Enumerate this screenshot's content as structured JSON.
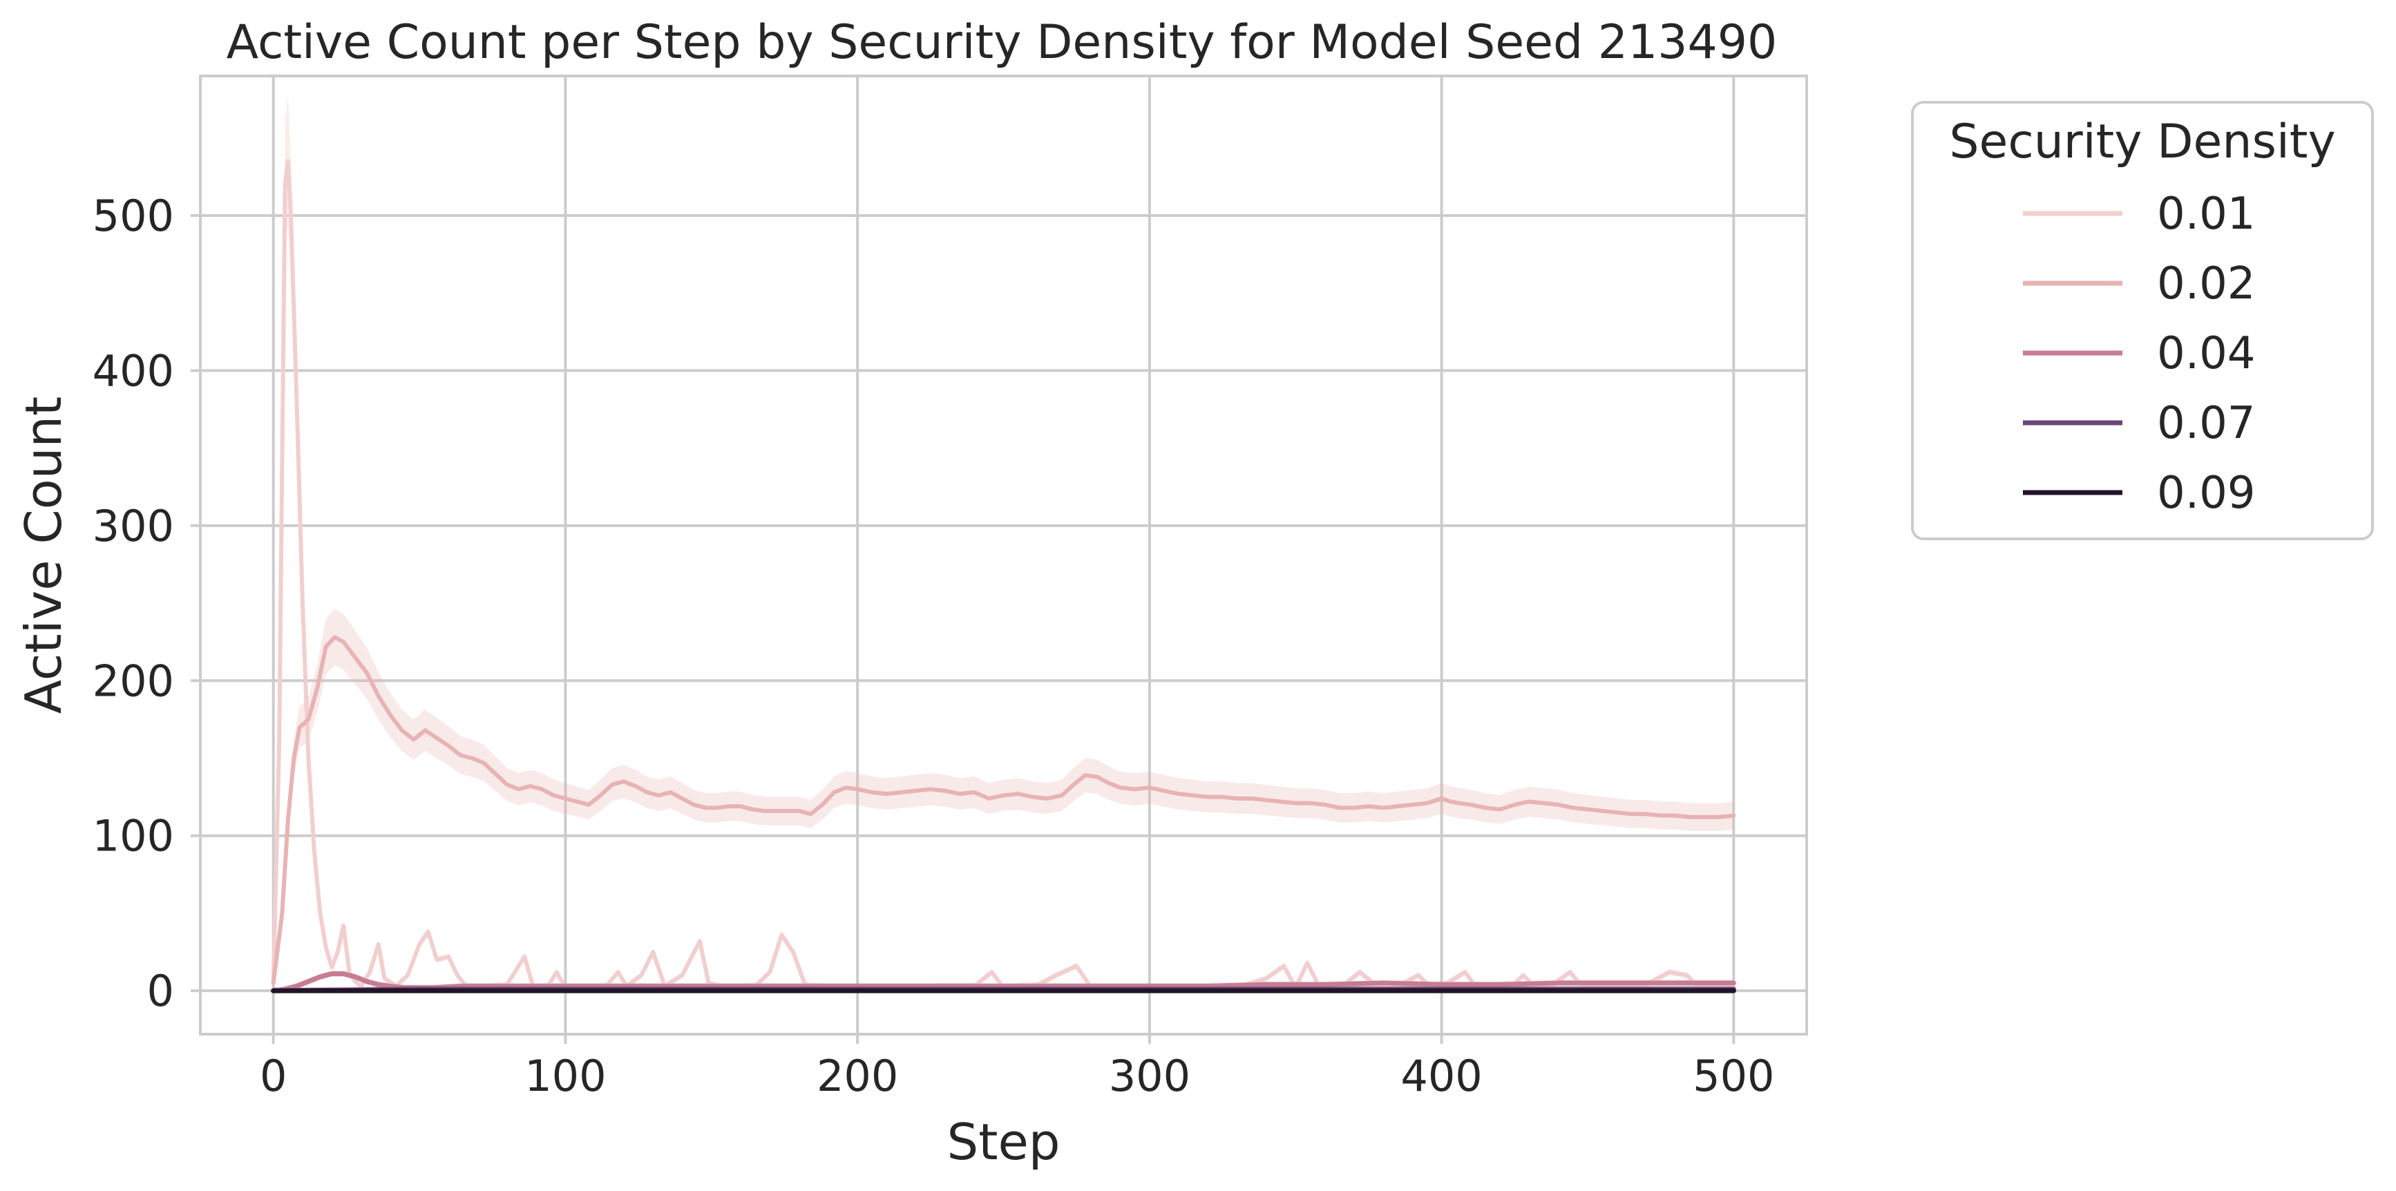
{
  "chart_data": {
    "type": "line",
    "title": "Active Count per Step by Security Density for Model Seed 213490",
    "xlabel": "Step",
    "ylabel": "Active Count",
    "xlim": [
      -25,
      525
    ],
    "ylim": [
      -28,
      590
    ],
    "xticks": [
      0,
      100,
      200,
      300,
      400,
      500
    ],
    "yticks": [
      0,
      100,
      200,
      300,
      400,
      500
    ],
    "grid": true,
    "legend": {
      "title": "Security Density",
      "placement": "outside-top-right"
    },
    "series": [
      {
        "name": "0.01",
        "color": "#f1cfce",
        "points": [
          [
            0,
            5
          ],
          [
            2,
            160
          ],
          [
            4,
            520
          ],
          [
            5,
            535
          ],
          [
            6,
            500
          ],
          [
            8,
            380
          ],
          [
            10,
            250
          ],
          [
            12,
            150
          ],
          [
            14,
            90
          ],
          [
            16,
            50
          ],
          [
            18,
            28
          ],
          [
            20,
            15
          ],
          [
            22,
            25
          ],
          [
            24,
            42
          ],
          [
            26,
            12
          ],
          [
            28,
            6
          ],
          [
            30,
            3
          ],
          [
            33,
            12
          ],
          [
            36,
            30
          ],
          [
            38,
            8
          ],
          [
            42,
            3
          ],
          [
            46,
            10
          ],
          [
            50,
            30
          ],
          [
            53,
            38
          ],
          [
            56,
            20
          ],
          [
            60,
            22
          ],
          [
            63,
            10
          ],
          [
            66,
            3
          ],
          [
            72,
            2
          ],
          [
            80,
            4
          ],
          [
            86,
            22
          ],
          [
            89,
            2
          ],
          [
            94,
            3
          ],
          [
            97,
            12
          ],
          [
            100,
            2
          ],
          [
            108,
            2
          ],
          [
            114,
            3
          ],
          [
            118,
            12
          ],
          [
            121,
            3
          ],
          [
            126,
            10
          ],
          [
            130,
            25
          ],
          [
            134,
            3
          ],
          [
            140,
            10
          ],
          [
            146,
            32
          ],
          [
            149,
            5
          ],
          [
            155,
            2
          ],
          [
            165,
            3
          ],
          [
            170,
            12
          ],
          [
            174,
            36
          ],
          [
            178,
            25
          ],
          [
            182,
            4
          ],
          [
            190,
            2
          ],
          [
            200,
            2
          ],
          [
            210,
            2
          ],
          [
            220,
            2
          ],
          [
            230,
            3
          ],
          [
            240,
            3
          ],
          [
            246,
            12
          ],
          [
            250,
            2
          ],
          [
            256,
            3
          ],
          [
            262,
            4
          ],
          [
            268,
            10
          ],
          [
            275,
            16
          ],
          [
            280,
            2
          ],
          [
            290,
            2
          ],
          [
            300,
            2
          ],
          [
            310,
            2
          ],
          [
            320,
            2
          ],
          [
            330,
            2
          ],
          [
            340,
            8
          ],
          [
            346,
            16
          ],
          [
            350,
            2
          ],
          [
            354,
            18
          ],
          [
            358,
            3
          ],
          [
            366,
            3
          ],
          [
            372,
            12
          ],
          [
            378,
            3
          ],
          [
            386,
            4
          ],
          [
            392,
            10
          ],
          [
            396,
            3
          ],
          [
            402,
            5
          ],
          [
            408,
            12
          ],
          [
            412,
            2
          ],
          [
            418,
            3
          ],
          [
            424,
            3
          ],
          [
            428,
            10
          ],
          [
            432,
            2
          ],
          [
            438,
            4
          ],
          [
            444,
            12
          ],
          [
            448,
            3
          ],
          [
            456,
            2
          ],
          [
            462,
            3
          ],
          [
            470,
            4
          ],
          [
            478,
            12
          ],
          [
            484,
            10
          ],
          [
            488,
            2
          ],
          [
            494,
            2
          ],
          [
            500,
            2
          ]
        ]
      },
      {
        "name": "0.02",
        "color": "#e8b3b4",
        "points": [
          [
            0,
            5
          ],
          [
            3,
            50
          ],
          [
            5,
            110
          ],
          [
            7,
            150
          ],
          [
            9,
            170
          ],
          [
            12,
            175
          ],
          [
            15,
            195
          ],
          [
            18,
            222
          ],
          [
            21,
            228
          ],
          [
            24,
            225
          ],
          [
            28,
            215
          ],
          [
            32,
            205
          ],
          [
            36,
            190
          ],
          [
            40,
            178
          ],
          [
            44,
            168
          ],
          [
            48,
            162
          ],
          [
            52,
            168
          ],
          [
            56,
            163
          ],
          [
            60,
            158
          ],
          [
            64,
            152
          ],
          [
            68,
            150
          ],
          [
            72,
            147
          ],
          [
            76,
            140
          ],
          [
            80,
            133
          ],
          [
            84,
            130
          ],
          [
            88,
            132
          ],
          [
            92,
            130
          ],
          [
            96,
            126
          ],
          [
            100,
            124
          ],
          [
            104,
            122
          ],
          [
            108,
            120
          ],
          [
            112,
            126
          ],
          [
            116,
            133
          ],
          [
            120,
            135
          ],
          [
            124,
            132
          ],
          [
            128,
            128
          ],
          [
            132,
            126
          ],
          [
            136,
            128
          ],
          [
            140,
            124
          ],
          [
            144,
            120
          ],
          [
            148,
            118
          ],
          [
            152,
            118
          ],
          [
            156,
            119
          ],
          [
            160,
            119
          ],
          [
            164,
            117
          ],
          [
            168,
            116
          ],
          [
            172,
            116
          ],
          [
            176,
            116
          ],
          [
            180,
            116
          ],
          [
            184,
            114
          ],
          [
            188,
            120
          ],
          [
            192,
            128
          ],
          [
            196,
            131
          ],
          [
            200,
            130
          ],
          [
            205,
            128
          ],
          [
            210,
            127
          ],
          [
            215,
            128
          ],
          [
            220,
            129
          ],
          [
            225,
            130
          ],
          [
            230,
            129
          ],
          [
            235,
            127
          ],
          [
            240,
            128
          ],
          [
            245,
            124
          ],
          [
            250,
            126
          ],
          [
            255,
            127
          ],
          [
            260,
            125
          ],
          [
            265,
            124
          ],
          [
            270,
            126
          ],
          [
            274,
            133
          ],
          [
            278,
            139
          ],
          [
            282,
            138
          ],
          [
            286,
            134
          ],
          [
            290,
            131
          ],
          [
            295,
            130
          ],
          [
            300,
            131
          ],
          [
            305,
            129
          ],
          [
            310,
            127
          ],
          [
            315,
            126
          ],
          [
            320,
            125
          ],
          [
            325,
            125
          ],
          [
            330,
            124
          ],
          [
            335,
            124
          ],
          [
            340,
            123
          ],
          [
            345,
            122
          ],
          [
            350,
            121
          ],
          [
            355,
            121
          ],
          [
            360,
            120
          ],
          [
            365,
            118
          ],
          [
            370,
            118
          ],
          [
            375,
            119
          ],
          [
            380,
            118
          ],
          [
            385,
            119
          ],
          [
            390,
            120
          ],
          [
            395,
            121
          ],
          [
            400,
            124
          ],
          [
            403,
            122
          ],
          [
            406,
            121
          ],
          [
            410,
            120
          ],
          [
            415,
            118
          ],
          [
            420,
            117
          ],
          [
            425,
            120
          ],
          [
            430,
            122
          ],
          [
            435,
            121
          ],
          [
            440,
            120
          ],
          [
            445,
            118
          ],
          [
            450,
            117
          ],
          [
            455,
            116
          ],
          [
            460,
            115
          ],
          [
            465,
            114
          ],
          [
            470,
            114
          ],
          [
            475,
            113
          ],
          [
            480,
            113
          ],
          [
            485,
            112
          ],
          [
            490,
            112
          ],
          [
            495,
            112
          ],
          [
            500,
            113
          ]
        ]
      },
      {
        "name": "0.04",
        "color": "#c67c91",
        "points": [
          [
            0,
            0
          ],
          [
            4,
            1
          ],
          [
            8,
            3
          ],
          [
            12,
            6
          ],
          [
            16,
            9
          ],
          [
            20,
            11
          ],
          [
            24,
            11
          ],
          [
            28,
            9
          ],
          [
            32,
            6
          ],
          [
            36,
            4
          ],
          [
            40,
            3
          ],
          [
            45,
            2
          ],
          [
            55,
            2
          ],
          [
            65,
            3
          ],
          [
            80,
            3
          ],
          [
            100,
            3
          ],
          [
            120,
            3
          ],
          [
            140,
            3
          ],
          [
            160,
            3
          ],
          [
            180,
            3
          ],
          [
            200,
            3
          ],
          [
            220,
            3
          ],
          [
            240,
            3
          ],
          [
            260,
            3
          ],
          [
            280,
            3
          ],
          [
            300,
            3
          ],
          [
            320,
            3
          ],
          [
            340,
            4
          ],
          [
            360,
            4
          ],
          [
            380,
            5
          ],
          [
            400,
            4
          ],
          [
            420,
            4
          ],
          [
            440,
            5
          ],
          [
            460,
            5
          ],
          [
            480,
            5
          ],
          [
            500,
            5
          ]
        ]
      },
      {
        "name": "0.07",
        "color": "#6a4479",
        "points": [
          [
            0,
            0
          ],
          [
            50,
            1
          ],
          [
            100,
            1
          ],
          [
            150,
            1
          ],
          [
            200,
            1
          ],
          [
            250,
            1
          ],
          [
            300,
            1
          ],
          [
            350,
            1
          ],
          [
            400,
            1
          ],
          [
            450,
            1
          ],
          [
            500,
            1
          ]
        ]
      },
      {
        "name": "0.09",
        "color": "#221428",
        "points": [
          [
            0,
            0
          ],
          [
            100,
            0
          ],
          [
            200,
            0
          ],
          [
            300,
            0
          ],
          [
            400,
            0
          ],
          [
            500,
            0
          ]
        ]
      }
    ]
  }
}
